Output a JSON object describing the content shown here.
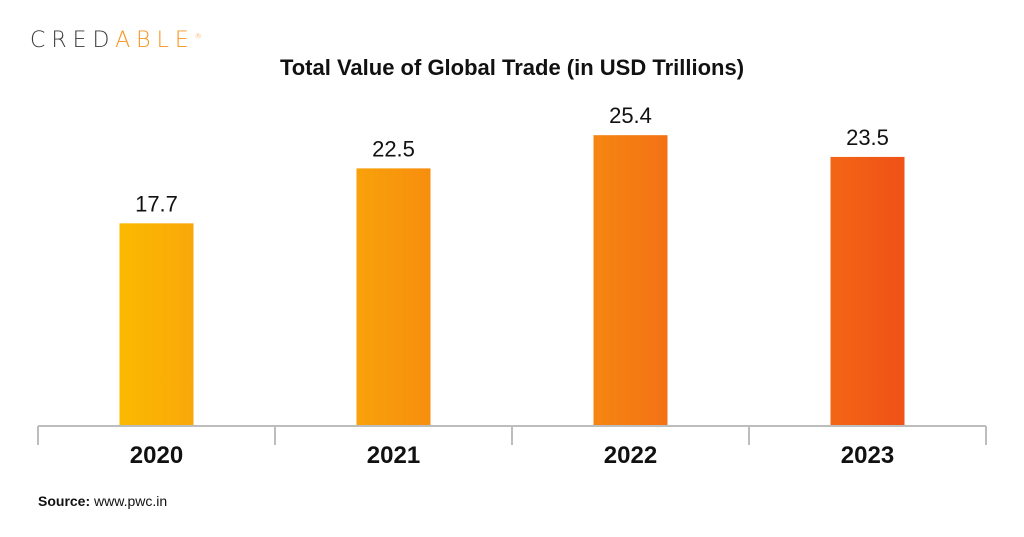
{
  "logo": {
    "text_main": "CRED",
    "text_accent": "ABLE",
    "mark": "®"
  },
  "chart_data": {
    "type": "bar",
    "title": "Total Value of Global Trade (in USD Trillions)",
    "categories": [
      "2020",
      "2021",
      "2022",
      "2023"
    ],
    "values": [
      17.7,
      22.5,
      25.4,
      23.5
    ],
    "value_labels": [
      "17.7",
      "22.5",
      "25.4",
      "23.5"
    ],
    "xlabel": "",
    "ylabel": "",
    "ylim": [
      0,
      27
    ],
    "grid": false,
    "colors": [
      [
        "#fbb900",
        "#f9a80a"
      ],
      [
        "#f9a10a",
        "#f78e0e"
      ],
      [
        "#f68512",
        "#f37214"
      ],
      [
        "#f26616",
        "#f05117"
      ]
    ]
  },
  "source": {
    "label": "Source:",
    "value": "www.pwc.in"
  }
}
